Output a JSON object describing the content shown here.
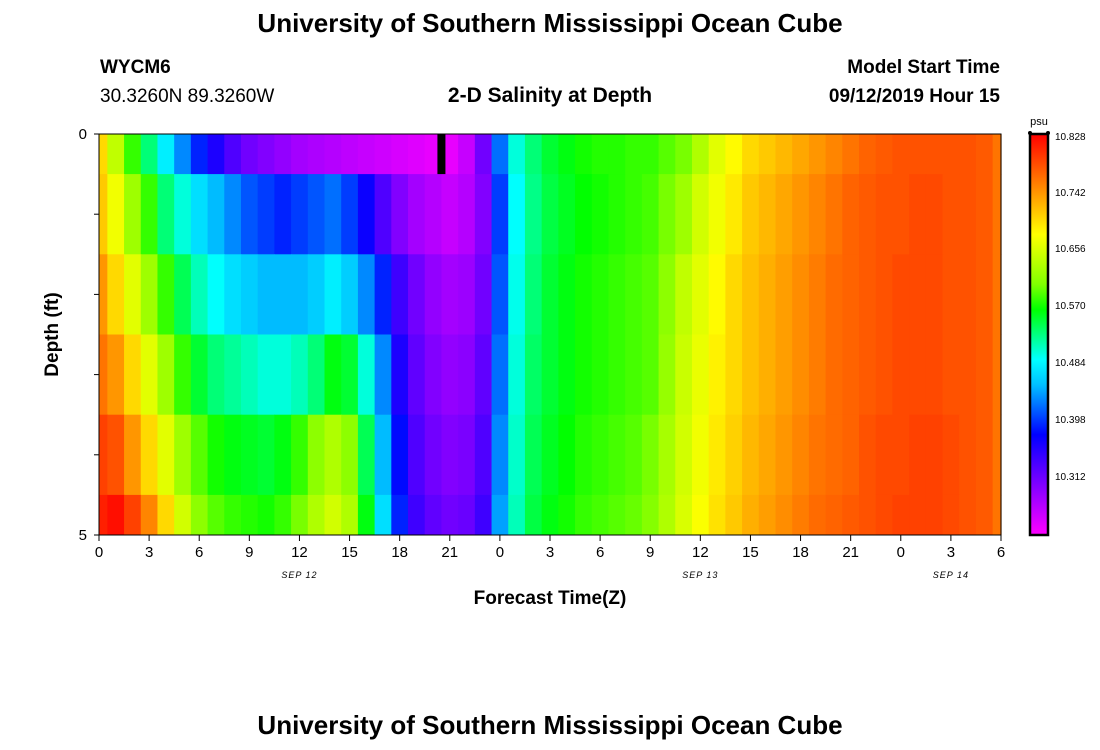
{
  "header": {
    "title": "University of Southern Mississippi Ocean Cube",
    "station_id": "WYCM6",
    "station_coords": "30.3260N 89.3260W",
    "model_start_label": "Model Start Time",
    "model_start_value": "09/12/2019 Hour 15"
  },
  "footer": {
    "title": "University of Southern Mississippi Ocean Cube"
  },
  "chart_data": {
    "type": "heatmap",
    "title": "2-D Salinity at Depth",
    "xlabel": "Forecast Time(Z)",
    "ylabel": "Depth (ft)",
    "units": "psu",
    "x_hours": [
      0,
      1,
      2,
      3,
      4,
      5,
      6,
      7,
      8,
      9,
      10,
      11,
      12,
      13,
      14,
      15,
      16,
      17,
      18,
      19,
      20,
      21,
      22,
      23,
      24,
      25,
      26,
      27,
      28,
      29,
      30,
      31,
      32,
      33,
      34,
      35,
      36,
      37,
      38,
      39,
      40,
      41,
      42,
      43,
      44,
      45,
      46,
      47,
      48,
      49,
      50,
      51,
      52,
      53,
      54
    ],
    "x_tick_labels": [
      "0",
      "3",
      "6",
      "9",
      "12",
      "15",
      "18",
      "21",
      "0",
      "3",
      "6",
      "9",
      "12",
      "15",
      "18",
      "21",
      "0",
      "3",
      "6"
    ],
    "x_tick_hours": [
      0,
      3,
      6,
      9,
      12,
      15,
      18,
      21,
      24,
      27,
      30,
      33,
      36,
      39,
      42,
      45,
      48,
      51,
      54
    ],
    "date_labels": [
      {
        "hour": 12,
        "label": "SEP 12"
      },
      {
        "hour": 36,
        "label": "SEP 13"
      },
      {
        "hour": 51,
        "label": "SEP 14"
      }
    ],
    "y_tick_labels": [
      "0",
      "5"
    ],
    "ylim": [
      0,
      5
    ],
    "depth_layers": [
      0,
      1,
      2,
      3,
      4,
      5
    ],
    "colorbar": {
      "min": 10.226,
      "max": 10.828,
      "tick_labels": [
        "10.828",
        "10.742",
        "10.656",
        "10.570",
        "10.484",
        "10.398",
        "10.312"
      ],
      "colors": [
        "#ff00ff",
        "#c000ff",
        "#8000ff",
        "#4000ff",
        "#0000ff",
        "#0060ff",
        "#00c0ff",
        "#00ffff",
        "#00ff80",
        "#00ff00",
        "#80ff00",
        "#c0ff00",
        "#ffff00",
        "#ffc000",
        "#ff8000",
        "#ff4000",
        "#ff0000"
      ]
    },
    "marker": {
      "hour": 20.5,
      "depth_from": 0,
      "depth_to": 0.5
    },
    "values": [
      [
        10.7,
        10.64,
        10.58,
        10.53,
        10.48,
        10.43,
        10.39,
        10.36,
        10.33,
        10.31,
        10.3,
        10.29,
        10.28,
        10.275,
        10.27,
        10.265,
        10.26,
        10.255,
        10.25,
        10.245,
        10.24,
        10.24,
        10.26,
        10.31,
        10.42,
        10.5,
        10.53,
        10.55,
        10.56,
        10.57,
        10.575,
        10.575,
        10.58,
        10.58,
        10.59,
        10.6,
        10.63,
        10.66,
        10.68,
        10.7,
        10.71,
        10.72,
        10.73,
        10.74,
        10.75,
        10.76,
        10.77,
        10.775,
        10.78,
        10.78,
        10.78,
        10.78,
        10.78,
        10.775,
        10.76
      ],
      [
        10.71,
        10.67,
        10.62,
        10.58,
        10.53,
        10.5,
        10.47,
        10.45,
        10.43,
        10.41,
        10.4,
        10.39,
        10.4,
        10.41,
        10.42,
        10.4,
        10.37,
        10.33,
        10.3,
        10.28,
        10.27,
        10.26,
        10.27,
        10.3,
        10.4,
        10.49,
        10.525,
        10.545,
        10.555,
        10.565,
        10.57,
        10.575,
        10.58,
        10.585,
        10.6,
        10.62,
        10.65,
        10.67,
        10.69,
        10.71,
        10.72,
        10.73,
        10.74,
        10.75,
        10.76,
        10.77,
        10.775,
        10.78,
        10.78,
        10.785,
        10.785,
        10.78,
        10.78,
        10.775,
        10.76
      ],
      [
        10.74,
        10.7,
        10.66,
        10.62,
        10.58,
        10.54,
        10.51,
        10.49,
        10.47,
        10.46,
        10.45,
        10.45,
        10.45,
        10.46,
        10.48,
        10.46,
        10.43,
        10.39,
        10.34,
        10.31,
        10.29,
        10.28,
        10.285,
        10.31,
        10.41,
        10.495,
        10.53,
        10.55,
        10.56,
        10.57,
        10.575,
        10.58,
        10.585,
        10.59,
        10.61,
        10.64,
        10.66,
        10.68,
        10.7,
        10.715,
        10.725,
        10.735,
        10.745,
        10.755,
        10.765,
        10.77,
        10.775,
        10.78,
        10.785,
        10.785,
        10.785,
        10.78,
        10.78,
        10.775,
        10.76
      ],
      [
        10.76,
        10.74,
        10.7,
        10.66,
        10.62,
        10.58,
        10.55,
        10.53,
        10.52,
        10.51,
        10.5,
        10.5,
        10.51,
        10.53,
        10.56,
        10.55,
        10.5,
        10.43,
        10.36,
        10.32,
        10.3,
        10.29,
        10.295,
        10.32,
        10.42,
        10.5,
        10.535,
        10.55,
        10.56,
        10.57,
        10.575,
        10.58,
        10.585,
        10.59,
        10.615,
        10.645,
        10.665,
        10.685,
        10.7,
        10.715,
        10.725,
        10.735,
        10.745,
        10.755,
        10.765,
        10.77,
        10.775,
        10.78,
        10.785,
        10.785,
        10.785,
        10.78,
        10.78,
        10.775,
        10.76
      ],
      [
        10.79,
        10.78,
        10.74,
        10.7,
        10.66,
        10.62,
        10.59,
        10.57,
        10.56,
        10.555,
        10.55,
        10.56,
        10.58,
        10.61,
        10.63,
        10.61,
        10.54,
        10.45,
        10.38,
        10.33,
        10.31,
        10.3,
        10.305,
        10.33,
        10.43,
        10.505,
        10.54,
        10.555,
        10.565,
        10.575,
        10.58,
        10.585,
        10.59,
        10.6,
        10.625,
        10.65,
        10.67,
        10.69,
        10.705,
        10.72,
        10.73,
        10.74,
        10.75,
        10.76,
        10.765,
        10.77,
        10.78,
        10.785,
        10.785,
        10.79,
        10.79,
        10.785,
        10.78,
        10.775,
        10.76
      ],
      [
        10.81,
        10.82,
        10.79,
        10.75,
        10.7,
        10.65,
        10.61,
        10.59,
        10.58,
        10.575,
        10.57,
        10.58,
        10.6,
        10.63,
        10.65,
        10.63,
        10.56,
        10.47,
        10.39,
        10.34,
        10.32,
        10.31,
        10.315,
        10.34,
        10.44,
        10.51,
        10.545,
        10.56,
        10.57,
        10.58,
        10.585,
        10.59,
        10.595,
        10.605,
        10.63,
        10.655,
        10.675,
        10.695,
        10.71,
        10.725,
        10.735,
        10.745,
        10.755,
        10.765,
        10.77,
        10.775,
        10.78,
        10.785,
        10.79,
        10.79,
        10.79,
        10.785,
        10.78,
        10.775,
        10.76
      ]
    ]
  }
}
